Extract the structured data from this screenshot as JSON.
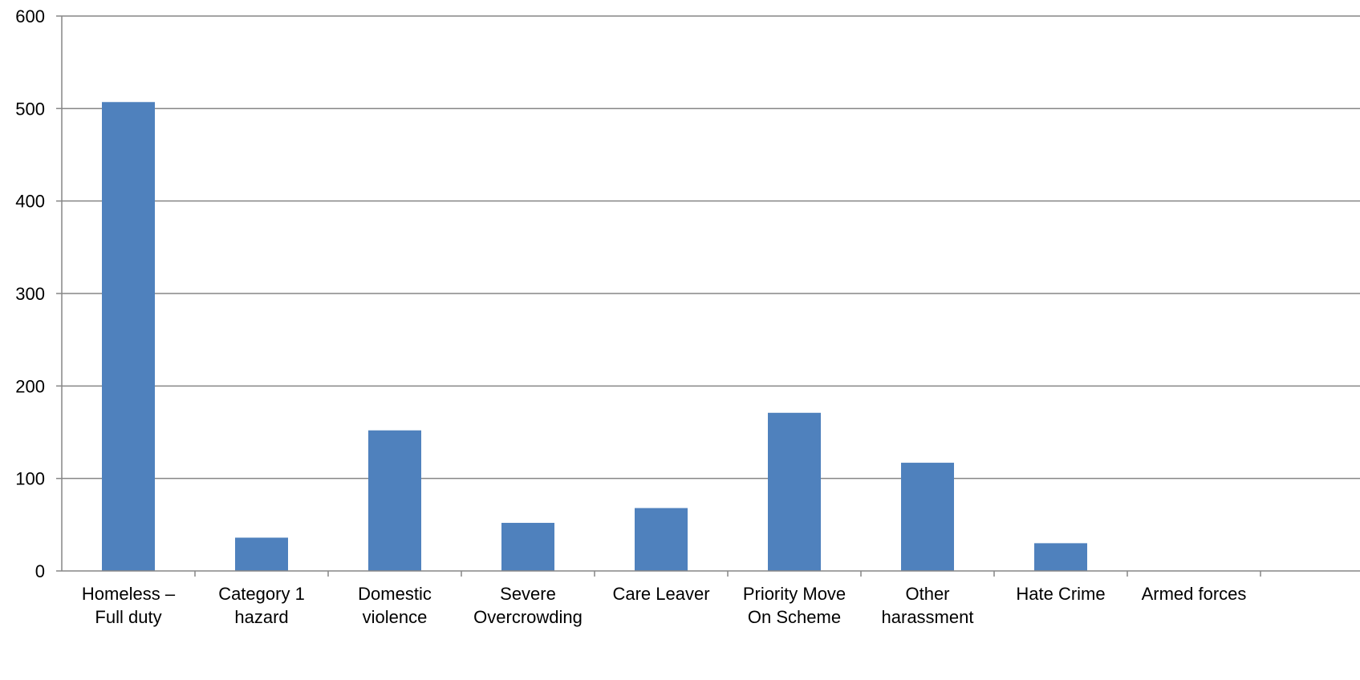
{
  "chart_data": {
    "type": "bar",
    "title": "",
    "xlabel": "",
    "ylabel": "",
    "categories": [
      [
        "Homeless –",
        "Full duty"
      ],
      [
        "Category 1",
        "hazard"
      ],
      [
        "Domestic",
        "violence"
      ],
      [
        "Severe",
        "Overcrowding"
      ],
      [
        "Care Leaver"
      ],
      [
        "Priority Move",
        "On Scheme"
      ],
      [
        "Other",
        "harassment"
      ],
      [
        "Hate Crime"
      ],
      [
        "Armed forces"
      ]
    ],
    "values": [
      507,
      36,
      152,
      52,
      68,
      171,
      117,
      30,
      0
    ],
    "ylim": [
      0,
      600
    ],
    "yticks": [
      0,
      100,
      200,
      300,
      400,
      500,
      600
    ],
    "grid": true,
    "legend": "none",
    "colors": {
      "bar": "#4F81BD",
      "grid": "#868686",
      "axis": "#868686"
    }
  }
}
